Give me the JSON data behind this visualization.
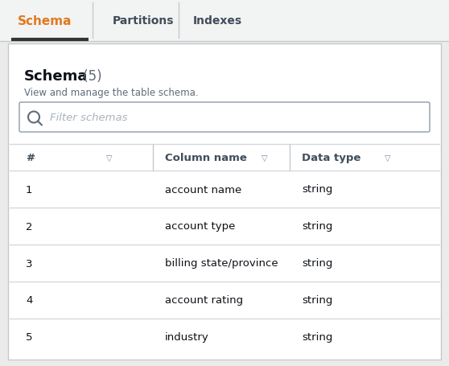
{
  "bg_color": "#ebebeb",
  "panel_color": "#ffffff",
  "tab_bar_bg": "#f2f3f3",
  "tab_active_text": "Schema",
  "tab_active_color": "#e07920",
  "tab_active_underline_color": "#333333",
  "tab_inactive": [
    "Partitions",
    "Indexes"
  ],
  "tab_inactive_color": "#414d5a",
  "tab_border_color": "#c6c9cc",
  "schema_title_bold": "Schema",
  "schema_count": " (5)",
  "schema_subtitle": "View and manage the table schema.",
  "filter_placeholder": "Filter schemas",
  "col_headers": [
    "#",
    "Column name",
    "Data type"
  ],
  "col_header_color": "#414d5a",
  "rows": [
    [
      "1",
      "account name",
      "string"
    ],
    [
      "2",
      "account type",
      "string"
    ],
    [
      "3",
      "billing state/province",
      "string"
    ],
    [
      "4",
      "account rating",
      "string"
    ],
    [
      "5",
      "industry",
      "string"
    ]
  ],
  "row_text_color": "#0d1117",
  "row_divider_color": "#d5d9de",
  "title_color": "#0d1117",
  "subtitle_color": "#5f6b7a",
  "search_border_color": "#8d9aaa",
  "search_bg": "#ffffff",
  "outer_border_color": "#c6c9cc",
  "tab_underline_color": "#333333",
  "arrow_color": "#7d8998",
  "div_line_color": "#c6c9cc"
}
